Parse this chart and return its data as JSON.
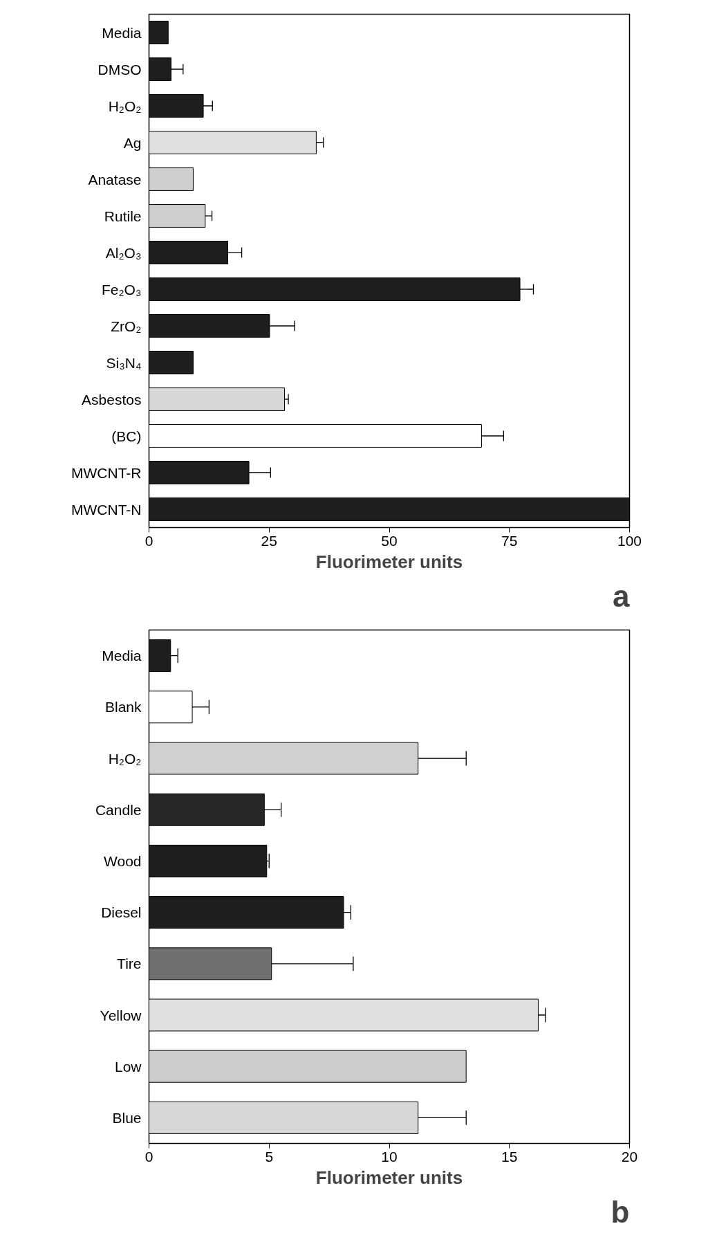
{
  "chart_data": [
    {
      "type": "bar",
      "orientation": "horizontal",
      "xlabel": "Fluorimeter units",
      "annotations": [
        "a"
      ],
      "categories": [
        "Media",
        "DMSO",
        "H₂O₂",
        "Ag",
        "Anatase",
        "Rutile",
        "Al₂O₃",
        "Fe₂O₃",
        "ZrO₂",
        "Si₃N₄",
        "Asbestos",
        "(BC)",
        "MWCNT-R",
        "MWCNT-N"
      ],
      "values": [
        4,
        4.6,
        11.3,
        34.8,
        9.2,
        11.7,
        16.4,
        77.2,
        25.1,
        9.2,
        28.2,
        69.2,
        20.8,
        100
      ],
      "errors": [
        null,
        [
          4.6,
          7.1
        ],
        [
          11.3,
          13.2
        ],
        [
          34.8,
          36.3
        ],
        null,
        [
          11.7,
          13.1
        ],
        [
          16.4,
          19.3
        ],
        [
          77.2,
          80
        ],
        [
          25.1,
          30.3
        ],
        null,
        [
          28.2,
          29
        ],
        [
          69.2,
          73.8
        ],
        [
          20.8,
          25.3
        ],
        null
      ],
      "colors": [
        "#1e1e1e",
        "#1e1e1e",
        "#1e1e1e",
        "#e0e0e0",
        "#cfcfcf",
        "#cfcfcf",
        "#1e1e1e",
        "#1e1e1e",
        "#1e1e1e",
        "#1e1e1e",
        "#d8d8d8",
        "#ffffff",
        "#1e1e1e",
        "#1e1e1e"
      ],
      "xlim": [
        0,
        100
      ],
      "xticks": [
        0,
        25,
        50,
        75,
        100
      ],
      "grid": false
    },
    {
      "type": "bar",
      "orientation": "horizontal",
      "xlabel": "Fluorimeter units",
      "annotations": [
        "b"
      ],
      "categories": [
        "Media",
        "Blank",
        "H₂O₂",
        "Candle",
        "Wood",
        "Diesel",
        "Tire",
        "Yellow",
        "Low",
        "Blue"
      ],
      "values": [
        0.9,
        1.8,
        11.2,
        4.8,
        4.9,
        8.1,
        5.1,
        16.2,
        13.2,
        11.2
      ],
      "errors": [
        [
          0.9,
          1.2
        ],
        [
          1.8,
          2.5
        ],
        [
          11.2,
          13.2
        ],
        [
          4.8,
          5.5
        ],
        [
          4.9,
          5.0
        ],
        [
          8.1,
          8.4
        ],
        [
          5.1,
          8.5
        ],
        [
          16.2,
          16.5
        ],
        null,
        [
          11.2,
          13.2
        ]
      ],
      "colors": [
        "#1e1e1e",
        "#ffffff",
        "#d0d0d0",
        "#262626",
        "#1e1e1e",
        "#1e1e1e",
        "#707070",
        "#e0e0e0",
        "#cccccc",
        "#d8d8d8"
      ],
      "xlim": [
        0,
        20
      ],
      "xticks": [
        0,
        5,
        10,
        15,
        20
      ],
      "grid": false
    }
  ]
}
